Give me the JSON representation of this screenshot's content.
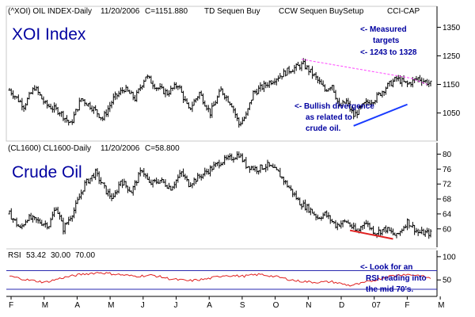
{
  "header": {
    "price_symbol": "(^XOI) OIL INDEX-Daily",
    "price_date": "11/20/2006",
    "price_close": "C=1151.880",
    "signal_1": "TD Sequen Buy",
    "signal_2": "CCW Sequen BuySetup",
    "source": "CCI-CAP",
    "crude_symbol": "(CL1600) CL1600-Daily",
    "crude_date": "11/20/2006",
    "crude_close": "C=58.800"
  },
  "colors": {
    "price_bars": "#000000",
    "accent_text": "#0000a0",
    "resistance": "#ff44ff",
    "support": "#1a3cff",
    "divergence": "#e02020",
    "rsi_line": "#e02020",
    "rsi_bands": "#2a2ab0",
    "rsi_label_1": "#cc0000",
    "rsi_label_2": "#0000cc",
    "rsi_label_3": "#0000cc"
  },
  "chart_data": [
    {
      "type": "bar",
      "title": "XOI Index",
      "header": "(^XOI) OIL INDEX-Daily",
      "yticks": [
        1050,
        1150,
        1250,
        1350
      ],
      "ylim": [
        960,
        1390
      ],
      "x_months": [
        "F",
        "M",
        "A",
        "M",
        "J",
        "J",
        "A",
        "S",
        "O",
        "N",
        "D",
        "07",
        "F",
        "M"
      ],
      "last_close": 1151.88,
      "series_anchors": [
        [
          0,
          1130
        ],
        [
          8,
          1075
        ],
        [
          14,
          1140
        ],
        [
          20,
          1080
        ],
        [
          28,
          1055
        ],
        [
          34,
          1010
        ],
        [
          40,
          1100
        ],
        [
          46,
          1070
        ],
        [
          52,
          1030
        ],
        [
          58,
          1100
        ],
        [
          64,
          1135
        ],
        [
          70,
          1100
        ],
        [
          76,
          1180
        ],
        [
          82,
          1140
        ],
        [
          88,
          1120
        ],
        [
          94,
          1150
        ],
        [
          100,
          1060
        ],
        [
          106,
          1120
        ],
        [
          112,
          1050
        ],
        [
          118,
          1130
        ],
        [
          124,
          1080
        ],
        [
          128,
          1010
        ],
        [
          132,
          1040
        ],
        [
          136,
          1120
        ],
        [
          142,
          1145
        ],
        [
          148,
          1170
        ],
        [
          156,
          1200
        ],
        [
          164,
          1220
        ],
        [
          170,
          1180
        ],
        [
          176,
          1130
        ],
        [
          180,
          1150
        ],
        [
          184,
          1070
        ],
        [
          188,
          1090
        ],
        [
          192,
          1040
        ],
        [
          198,
          1080
        ],
        [
          204,
          1100
        ],
        [
          210,
          1140
        ],
        [
          216,
          1170
        ],
        [
          222,
          1150
        ],
        [
          228,
          1172
        ],
        [
          232,
          1160
        ],
        [
          235,
          1152
        ]
      ],
      "annotations": [
        {
          "type": "line",
          "label": "resistance",
          "points": [
            [
              163,
              1238
            ],
            [
              224,
              1172
            ],
            [
              233,
              1150
            ]
          ]
        },
        {
          "type": "line",
          "label": "support",
          "points": [
            [
              192,
              1005
            ],
            [
              222,
              1080
            ]
          ]
        },
        {
          "type": "text",
          "lines": [
            "<- Measured",
            "targets",
            "<- 1243 to 1328"
          ]
        },
        {
          "type": "text",
          "lines": [
            "<- Bullish divergence",
            "as related to",
            "crude oil."
          ]
        }
      ]
    },
    {
      "type": "bar",
      "title": "Crude Oil",
      "header": "(CL1600) CL1600-Daily",
      "yticks": [
        60,
        64,
        68,
        72,
        76,
        80
      ],
      "ylim": [
        55.5,
        81.8
      ],
      "last_close": 58.8,
      "series_anchors": [
        [
          0,
          64
        ],
        [
          6,
          60
        ],
        [
          10,
          63
        ],
        [
          16,
          62
        ],
        [
          22,
          61
        ],
        [
          26,
          66
        ],
        [
          30,
          60
        ],
        [
          36,
          65
        ],
        [
          42,
          72
        ],
        [
          48,
          75
        ],
        [
          54,
          70
        ],
        [
          58,
          68
        ],
        [
          62,
          73
        ],
        [
          68,
          70
        ],
        [
          74,
          76
        ],
        [
          78,
          72
        ],
        [
          84,
          73
        ],
        [
          90,
          71
        ],
        [
          96,
          75
        ],
        [
          100,
          72
        ],
        [
          106,
          74
        ],
        [
          112,
          76
        ],
        [
          118,
          78
        ],
        [
          124,
          79
        ],
        [
          128,
          80
        ],
        [
          132,
          77
        ],
        [
          138,
          76
        ],
        [
          144,
          77
        ],
        [
          150,
          75
        ],
        [
          156,
          71
        ],
        [
          162,
          67
        ],
        [
          168,
          65
        ],
        [
          172,
          63
        ],
        [
          176,
          64
        ],
        [
          182,
          61
        ],
        [
          188,
          62
        ],
        [
          194,
          59
        ],
        [
          198,
          62
        ],
        [
          204,
          59
        ],
        [
          210,
          60
        ],
        [
          216,
          58
        ],
        [
          222,
          62
        ],
        [
          228,
          59
        ],
        [
          235,
          58.8
        ]
      ],
      "annotations": [
        {
          "type": "line",
          "label": "divergence",
          "points": [
            [
              190,
              59.6
            ],
            [
              214,
              57.3
            ]
          ]
        }
      ]
    },
    {
      "type": "line",
      "title": "RSI",
      "legend": [
        "53.42",
        "30.00",
        "70.00"
      ],
      "bands": [
        30,
        70
      ],
      "yticks": [
        50,
        100
      ],
      "ylim": [
        18,
        110
      ],
      "series_anchors": [
        [
          0,
          58
        ],
        [
          10,
          50
        ],
        [
          20,
          45
        ],
        [
          30,
          55
        ],
        [
          40,
          62
        ],
        [
          50,
          66
        ],
        [
          60,
          62
        ],
        [
          70,
          58
        ],
        [
          80,
          60
        ],
        [
          90,
          52
        ],
        [
          100,
          48
        ],
        [
          110,
          52
        ],
        [
          120,
          60
        ],
        [
          130,
          58
        ],
        [
          140,
          62
        ],
        [
          150,
          56
        ],
        [
          160,
          48
        ],
        [
          170,
          45
        ],
        [
          180,
          46
        ],
        [
          190,
          38
        ],
        [
          196,
          42
        ],
        [
          204,
          50
        ],
        [
          212,
          58
        ],
        [
          220,
          62
        ],
        [
          228,
          60
        ],
        [
          235,
          53.42
        ]
      ],
      "annotations": [
        {
          "type": "text",
          "lines": [
            "<- Look for an",
            "RSI reading into",
            "the mid 70's."
          ]
        }
      ]
    }
  ]
}
